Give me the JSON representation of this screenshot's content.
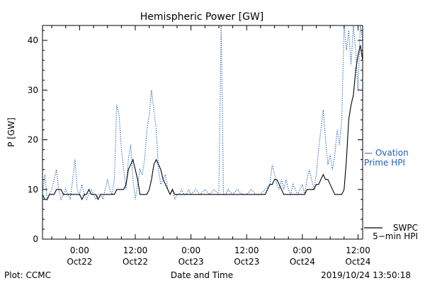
{
  "footer": {
    "plot_label": "Plot: CCMC",
    "timestamp": "2019/10/24 13:50:18"
  },
  "colors": {
    "ovation": "#1e5fb5",
    "swpc": "#000000"
  },
  "chart_data": {
    "type": "line",
    "title": "Hemispheric Power [GW]",
    "xlabel": "Date and Time",
    "ylabel": "P [GW]",
    "ylim": [
      0,
      43
    ],
    "xlim_hours": [
      -8,
      61
    ],
    "yticks": [
      0,
      10,
      20,
      30,
      40
    ],
    "xticks": [
      {
        "hour": 0,
        "time": "0:00",
        "date": "Oct22"
      },
      {
        "hour": 12,
        "time": "12:00",
        "date": "Oct22"
      },
      {
        "hour": 24,
        "time": "0:00",
        "date": "Oct23"
      },
      {
        "hour": 36,
        "time": "12:00",
        "date": "Oct23"
      },
      {
        "hour": 48,
        "time": "0:00",
        "date": "Oct24"
      },
      {
        "hour": 60,
        "time": "12:00",
        "date": "Oct24"
      }
    ],
    "grid": false,
    "legend_position": "right",
    "series": [
      {
        "name_lines": [
          "— Ovation",
          "Prime HPI"
        ],
        "style": "dotted",
        "color": "#1e5fb5",
        "points": [
          [
            -8.0,
            9
          ],
          [
            -7.5,
            13
          ],
          [
            -7.0,
            8
          ],
          [
            -6.5,
            9
          ],
          [
            -6.0,
            10
          ],
          [
            -5.5,
            12
          ],
          [
            -5.0,
            14
          ],
          [
            -4.5,
            10
          ],
          [
            -4.0,
            8
          ],
          [
            -3.5,
            9
          ],
          [
            -3.0,
            10
          ],
          [
            -2.5,
            9
          ],
          [
            -2.0,
            8
          ],
          [
            -1.5,
            12
          ],
          [
            -1.0,
            16
          ],
          [
            -0.5,
            10
          ],
          [
            0.0,
            9
          ],
          [
            0.5,
            11
          ],
          [
            1.0,
            9
          ],
          [
            1.5,
            8
          ],
          [
            2.0,
            9
          ],
          [
            2.5,
            10
          ],
          [
            3.0,
            9
          ],
          [
            3.5,
            8
          ],
          [
            4.0,
            9
          ],
          [
            4.5,
            9
          ],
          [
            5.0,
            8
          ],
          [
            5.5,
            10
          ],
          [
            6.0,
            12
          ],
          [
            6.5,
            10
          ],
          [
            7.0,
            9
          ],
          [
            7.5,
            12
          ],
          [
            8.0,
            27
          ],
          [
            8.5,
            25
          ],
          [
            9.0,
            18
          ],
          [
            9.5,
            14
          ],
          [
            10.0,
            10
          ],
          [
            10.5,
            16
          ],
          [
            11.0,
            19
          ],
          [
            11.5,
            12
          ],
          [
            12.0,
            8
          ],
          [
            12.5,
            11
          ],
          [
            13.0,
            14
          ],
          [
            13.5,
            13
          ],
          [
            14.0,
            16
          ],
          [
            14.5,
            22
          ],
          [
            15.0,
            25
          ],
          [
            15.5,
            30
          ],
          [
            16.0,
            26
          ],
          [
            16.5,
            22
          ],
          [
            17.0,
            14
          ],
          [
            17.5,
            11
          ],
          [
            18.0,
            12
          ],
          [
            18.5,
            13
          ],
          [
            19.0,
            10
          ],
          [
            19.5,
            9
          ],
          [
            20.0,
            10
          ],
          [
            20.5,
            8
          ],
          [
            21.0,
            9
          ],
          [
            21.5,
            9
          ],
          [
            22.0,
            10
          ],
          [
            22.5,
            9
          ],
          [
            23.0,
            9
          ],
          [
            23.5,
            10
          ],
          [
            24.0,
            9
          ],
          [
            25.0,
            10
          ],
          [
            26.0,
            9
          ],
          [
            27.0,
            10
          ],
          [
            28.0,
            9
          ],
          [
            29.0,
            10
          ],
          [
            30.0,
            9
          ],
          [
            30.5,
            43
          ],
          [
            31.0,
            9
          ],
          [
            31.5,
            9
          ],
          [
            32.0,
            10
          ],
          [
            33.0,
            9
          ],
          [
            34.0,
            10
          ],
          [
            35.0,
            9
          ],
          [
            36.0,
            9
          ],
          [
            37.0,
            10
          ],
          [
            38.0,
            9
          ],
          [
            39.0,
            9
          ],
          [
            40.0,
            10
          ],
          [
            41.0,
            11
          ],
          [
            41.5,
            15
          ],
          [
            42.0,
            13
          ],
          [
            42.5,
            11
          ],
          [
            43.0,
            10
          ],
          [
            43.5,
            12
          ],
          [
            44.0,
            10
          ],
          [
            44.5,
            12
          ],
          [
            45.0,
            10
          ],
          [
            45.5,
            9
          ],
          [
            46.0,
            11
          ],
          [
            46.5,
            10
          ],
          [
            47.0,
            9
          ],
          [
            47.5,
            10
          ],
          [
            48.0,
            11
          ],
          [
            48.5,
            9
          ],
          [
            49.0,
            12
          ],
          [
            49.5,
            14
          ],
          [
            50.0,
            12
          ],
          [
            50.5,
            10
          ],
          [
            51.0,
            13
          ],
          [
            51.5,
            18
          ],
          [
            52.0,
            22
          ],
          [
            52.5,
            26
          ],
          [
            53.0,
            20
          ],
          [
            53.5,
            15
          ],
          [
            54.0,
            17
          ],
          [
            54.5,
            14
          ],
          [
            55.0,
            17
          ],
          [
            55.5,
            22
          ],
          [
            56.0,
            19
          ],
          [
            56.5,
            24
          ],
          [
            57.0,
            43
          ],
          [
            57.5,
            38
          ],
          [
            58.0,
            42
          ],
          [
            58.5,
            35
          ],
          [
            59.0,
            43
          ],
          [
            59.5,
            38
          ],
          [
            60.0,
            30
          ],
          [
            60.5,
            43
          ],
          [
            61.0,
            40
          ]
        ]
      },
      {
        "name_lines": [
          "SWPC",
          "5−min HPI"
        ],
        "style": "solid",
        "color": "#000000",
        "points": [
          [
            -8.0,
            9
          ],
          [
            -7.5,
            8
          ],
          [
            -7.0,
            8
          ],
          [
            -6.5,
            9
          ],
          [
            -6.0,
            9
          ],
          [
            -5.5,
            9
          ],
          [
            -5.0,
            10
          ],
          [
            -4.5,
            10
          ],
          [
            -4.0,
            10
          ],
          [
            -3.5,
            9
          ],
          [
            -3.0,
            9
          ],
          [
            -2.5,
            9
          ],
          [
            -2.0,
            9
          ],
          [
            -1.5,
            9
          ],
          [
            -1.0,
            9
          ],
          [
            -0.5,
            9
          ],
          [
            0.0,
            9
          ],
          [
            0.5,
            8
          ],
          [
            1.0,
            9
          ],
          [
            1.5,
            9
          ],
          [
            2.0,
            10
          ],
          [
            2.5,
            9
          ],
          [
            3.0,
            9
          ],
          [
            3.5,
            9
          ],
          [
            4.0,
            8
          ],
          [
            4.5,
            9
          ],
          [
            5.0,
            9
          ],
          [
            5.5,
            9
          ],
          [
            6.0,
            9
          ],
          [
            6.5,
            9
          ],
          [
            7.0,
            9
          ],
          [
            7.5,
            9
          ],
          [
            8.0,
            10
          ],
          [
            8.5,
            10
          ],
          [
            9.0,
            10
          ],
          [
            9.5,
            10
          ],
          [
            10.0,
            11
          ],
          [
            10.5,
            14
          ],
          [
            11.0,
            15
          ],
          [
            11.5,
            16
          ],
          [
            12.0,
            14
          ],
          [
            12.5,
            12
          ],
          [
            13.0,
            9
          ],
          [
            13.5,
            9
          ],
          [
            14.0,
            9
          ],
          [
            14.5,
            9
          ],
          [
            15.0,
            10
          ],
          [
            15.5,
            12
          ],
          [
            16.0,
            15
          ],
          [
            16.5,
            16
          ],
          [
            17.0,
            15
          ],
          [
            17.5,
            14
          ],
          [
            18.0,
            12
          ],
          [
            18.5,
            11
          ],
          [
            19.0,
            10
          ],
          [
            19.5,
            9
          ],
          [
            20.0,
            10
          ],
          [
            20.5,
            9
          ],
          [
            21.0,
            9
          ],
          [
            21.5,
            9
          ],
          [
            22.0,
            9
          ],
          [
            22.5,
            9
          ],
          [
            23.0,
            9
          ],
          [
            24.0,
            9
          ],
          [
            25.0,
            9
          ],
          [
            26.0,
            9
          ],
          [
            27.0,
            9
          ],
          [
            28.0,
            9
          ],
          [
            29.0,
            9
          ],
          [
            30.0,
            9
          ],
          [
            31.0,
            9
          ],
          [
            32.0,
            9
          ],
          [
            33.0,
            9
          ],
          [
            34.0,
            9
          ],
          [
            35.0,
            9
          ],
          [
            36.0,
            9
          ],
          [
            37.0,
            9
          ],
          [
            38.0,
            9
          ],
          [
            39.0,
            9
          ],
          [
            40.0,
            9
          ],
          [
            40.5,
            10
          ],
          [
            41.0,
            11
          ],
          [
            41.5,
            11
          ],
          [
            42.0,
            12
          ],
          [
            42.5,
            12
          ],
          [
            43.0,
            11
          ],
          [
            43.5,
            10
          ],
          [
            44.0,
            9
          ],
          [
            45.0,
            9
          ],
          [
            46.0,
            9
          ],
          [
            47.0,
            9
          ],
          [
            48.0,
            9
          ],
          [
            48.5,
            9
          ],
          [
            49.0,
            10
          ],
          [
            49.5,
            10
          ],
          [
            50.0,
            10
          ],
          [
            50.5,
            10
          ],
          [
            51.0,
            11
          ],
          [
            51.5,
            11
          ],
          [
            52.0,
            12
          ],
          [
            52.5,
            13
          ],
          [
            53.0,
            12
          ],
          [
            53.5,
            12
          ],
          [
            54.0,
            11
          ],
          [
            54.5,
            10
          ],
          [
            55.0,
            9
          ],
          [
            55.5,
            9
          ],
          [
            56.0,
            9
          ],
          [
            56.5,
            9
          ],
          [
            57.0,
            10
          ],
          [
            57.5,
            16
          ],
          [
            58.0,
            24
          ],
          [
            58.5,
            27
          ],
          [
            59.0,
            29
          ],
          [
            59.5,
            34
          ],
          [
            60.0,
            37
          ],
          [
            60.5,
            39
          ],
          [
            61.0,
            36
          ]
        ]
      }
    ]
  }
}
